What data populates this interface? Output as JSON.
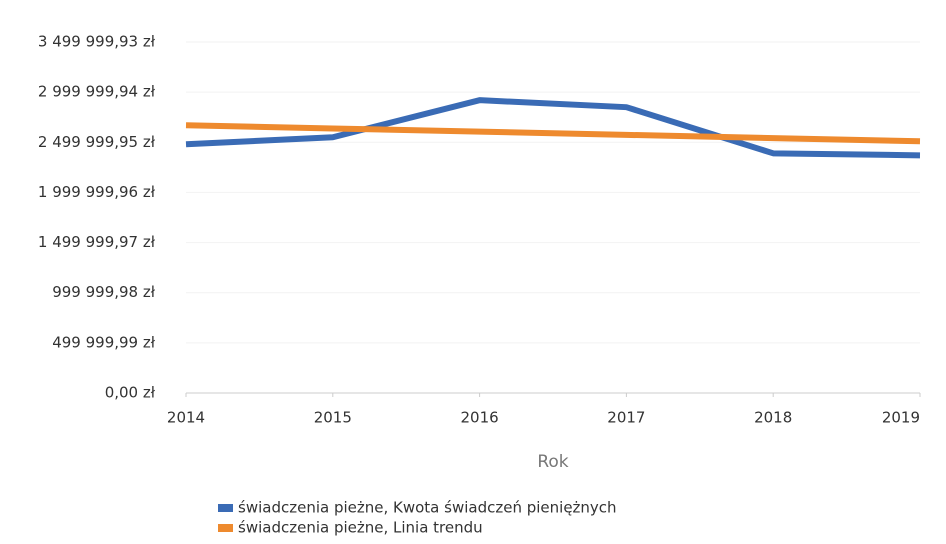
{
  "chart_data": {
    "type": "line",
    "x_label": "Rok",
    "x": [
      2014,
      2015,
      2016,
      2017,
      2018,
      2019
    ],
    "xlim": [
      2014,
      2019
    ],
    "xticks": [
      2014,
      2015,
      2016,
      2017,
      2018,
      2019
    ],
    "ylim": [
      0,
      3499999.93
    ],
    "yticks": [
      {
        "value": 0,
        "label": "0,00 zł"
      },
      {
        "value": 499999.99,
        "label": "499 999,99 zł"
      },
      {
        "value": 999999.98,
        "label": "999 999,98 zł"
      },
      {
        "value": 1499999.97,
        "label": "1 499 999,97 zł"
      },
      {
        "value": 1999999.96,
        "label": "1 999 999,96 zł"
      },
      {
        "value": 2499999.95,
        "label": "2 499 999,95 zł"
      },
      {
        "value": 2999999.94,
        "label": "2 999 999,94 zł"
      },
      {
        "value": 3499999.93,
        "label": "3 499 999,93 zł"
      }
    ],
    "grid": true,
    "legend": "bottom",
    "series": [
      {
        "name": "świadczenia pieżne, Kwota świadczeń pieniężnych",
        "color": "#3a6bb5",
        "values": [
          2480000,
          2550000,
          2920000,
          2850000,
          2390000,
          2370000
        ]
      },
      {
        "name": "świadczenia pieżne, Linia trendu",
        "color": "#ee8a2e",
        "values": [
          2670000,
          2638000,
          2606000,
          2574000,
          2542000,
          2510000
        ]
      }
    ]
  }
}
